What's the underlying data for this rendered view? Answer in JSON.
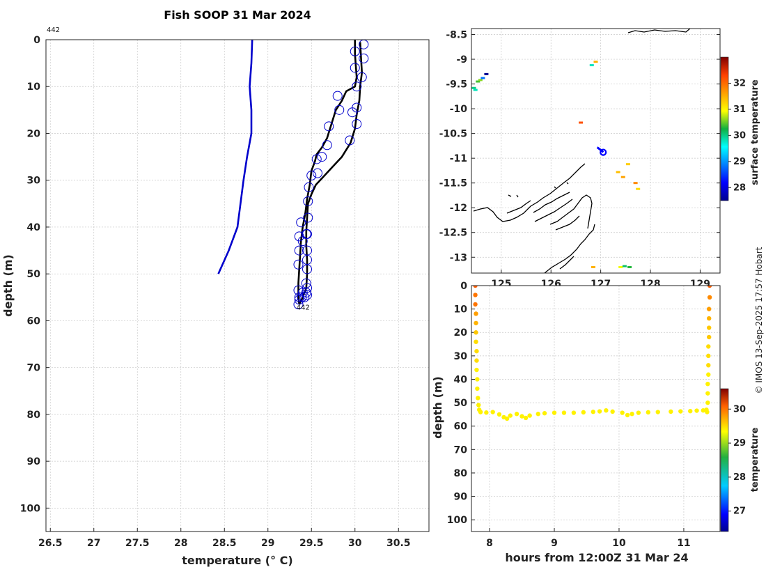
{
  "title": "Fish SOOP 31 Mar 2024",
  "credit": "© IMOS 13-Sep-2025 17:57 Hobart",
  "chart_data": [
    {
      "type": "line",
      "name": "temperature-profile",
      "xlabel": "temperature (° C)",
      "ylabel": "depth (m)",
      "xlim": [
        26.45,
        30.85
      ],
      "ylim": [
        105,
        0
      ],
      "xticks": [
        26.5,
        27,
        27.5,
        28,
        28.5,
        29,
        29.5,
        30,
        30.5
      ],
      "yticks": [
        0,
        10,
        20,
        30,
        40,
        50,
        60,
        70,
        80,
        90,
        100
      ],
      "grid": true,
      "annotations": [
        {
          "text": "442",
          "position": "top-left"
        },
        {
          "text": "442",
          "at": [
            29.36,
            57.2
          ]
        }
      ],
      "series": [
        {
          "name": "climatology",
          "color": "#0000cc",
          "x": [
            28.82,
            28.81,
            28.79,
            28.81,
            28.81,
            28.76,
            28.72,
            28.65,
            28.55,
            28.43
          ],
          "y": [
            0,
            5,
            10,
            15,
            20,
            25,
            30,
            40,
            45,
            50
          ]
        },
        {
          "name": "profile",
          "color": "#000000",
          "x": [
            30.0,
            30.0,
            30.02,
            30.0,
            29.9,
            29.85,
            29.78,
            29.73,
            29.68,
            29.62,
            29.56,
            29.54,
            29.5,
            29.48,
            29.45,
            29.43,
            29.4,
            29.38,
            29.37,
            29.36,
            29.35,
            29.35,
            29.35,
            29.36
          ],
          "y": [
            0,
            3,
            8,
            10,
            11,
            13,
            15,
            18,
            21,
            23,
            24.5,
            26,
            28,
            31,
            34,
            37,
            40,
            43,
            46,
            49,
            52,
            54,
            55,
            56.5
          ]
        },
        {
          "name": "profile-return",
          "color": "#000000",
          "x": [
            29.36,
            29.4,
            29.44,
            29.45,
            29.45,
            29.44,
            29.44,
            29.45,
            29.46,
            29.5,
            29.55,
            29.65,
            29.75,
            29.85,
            29.95,
            30.0,
            30.02,
            30.05,
            30.06,
            30.08,
            30.07,
            30.06
          ],
          "y": [
            56.5,
            55,
            53,
            50,
            47,
            44,
            41,
            38,
            35,
            33,
            31,
            29,
            27,
            25,
            22,
            19,
            16,
            13,
            10,
            7,
            4,
            0.5
          ]
        },
        {
          "name": "profile-markers",
          "color": "#0000cc",
          "x": [
            30.1,
            30.1,
            30.08,
            30.02,
            30.02,
            30.02,
            29.94,
            29.8,
            29.82,
            29.7,
            29.68,
            29.62,
            29.57,
            29.56,
            29.5,
            29.47,
            29.46,
            29.46,
            29.45,
            29.45,
            29.45,
            29.45,
            29.45,
            29.42,
            29.4,
            29.36,
            29.35,
            29.36,
            29.35,
            29.36,
            29.35,
            29.36,
            29.38,
            29.4,
            29.44,
            29.45,
            29.44,
            29.44,
            29.39,
            30.0,
            30.0,
            29.97
          ],
          "y": [
            1,
            4,
            8,
            10,
            14.5,
            18,
            21.5,
            12,
            15,
            18.5,
            22.5,
            25,
            28.5,
            25.5,
            29,
            31.5,
            34.5,
            38,
            41.5,
            45,
            49,
            53,
            54.5,
            55,
            54,
            55.5,
            56.5,
            55,
            53.5,
            45,
            48,
            42,
            39,
            43,
            41.5,
            47,
            52,
            54,
            55,
            2.5,
            6,
            15.5
          ]
        }
      ]
    },
    {
      "type": "scatter",
      "name": "surface-temperature-map",
      "xlabel": "",
      "ylabel": "",
      "xlim": [
        124.4,
        129.4
      ],
      "ylim": [
        -13.32,
        -8.38
      ],
      "xticks": [
        125,
        126,
        127,
        128,
        129
      ],
      "yticks": [
        -8.5,
        -9,
        -9.5,
        -10,
        -10.5,
        -11,
        -11.5,
        -12,
        -12.5,
        -13
      ],
      "grid": true,
      "colorbar": {
        "label": "surface temperature",
        "range": [
          27.5,
          33.0
        ],
        "ticks": [
          28,
          29,
          30,
          31,
          32
        ]
      },
      "points": [
        {
          "lon": 124.45,
          "lat": -9.58,
          "c": 30.0
        },
        {
          "lon": 124.48,
          "lat": -9.62,
          "c": 29.8
        },
        {
          "lon": 124.53,
          "lat": -9.45,
          "c": 30.4
        },
        {
          "lon": 124.58,
          "lat": -9.42,
          "c": 30.6
        },
        {
          "lon": 124.63,
          "lat": -9.38,
          "c": 28.8
        },
        {
          "lon": 124.7,
          "lat": -9.3,
          "c": 27.5
        },
        {
          "lon": 126.9,
          "lat": -9.05,
          "c": 31.5
        },
        {
          "lon": 126.82,
          "lat": -9.12,
          "c": 29.8
        },
        {
          "lon": 126.6,
          "lat": -10.28,
          "c": 32.2
        },
        {
          "lon": 127.35,
          "lat": -11.28,
          "c": 31.4
        },
        {
          "lon": 127.45,
          "lat": -11.38,
          "c": 31.6
        },
        {
          "lon": 127.7,
          "lat": -11.5,
          "c": 31.8
        },
        {
          "lon": 127.55,
          "lat": -11.12,
          "c": 31.3
        },
        {
          "lon": 127.75,
          "lat": -11.62,
          "c": 31.2
        },
        {
          "lon": 126.85,
          "lat": -13.2,
          "c": 31.5
        },
        {
          "lon": 127.4,
          "lat": -13.2,
          "c": 30.9
        },
        {
          "lon": 127.48,
          "lat": -13.18,
          "c": 30.1
        },
        {
          "lon": 127.58,
          "lat": -13.2,
          "c": 30.3
        }
      ],
      "track": {
        "lon": [
          126.93,
          126.97,
          127.02,
          127.05
        ],
        "lat": [
          -10.78,
          -10.81,
          -10.85,
          -10.88
        ],
        "color": "#0000ff"
      }
    },
    {
      "type": "scatter",
      "name": "depth-time-section",
      "xlabel": "hours from 12:00Z 31 Mar 24",
      "ylabel": "depth (m)",
      "xlim": [
        7.72,
        11.56
      ],
      "ylim": [
        105,
        0
      ],
      "xticks": [
        8,
        9,
        10,
        11
      ],
      "yticks": [
        0,
        10,
        20,
        30,
        40,
        50,
        60,
        70,
        80,
        90,
        100
      ],
      "grid": true,
      "colorbar": {
        "label": "temperature",
        "range": [
          26.4,
          30.6
        ],
        "ticks": [
          27,
          28,
          29,
          30
        ]
      },
      "descent": {
        "x": [
          7.78,
          7.78,
          7.78,
          7.79,
          7.79,
          7.79,
          7.79,
          7.8,
          7.8,
          7.8,
          7.81,
          7.81,
          7.82,
          7.83,
          7.84,
          7.86
        ],
        "depth": [
          0,
          4,
          8,
          12,
          16,
          20,
          24,
          28,
          32,
          36,
          40,
          44,
          48,
          51,
          53,
          54
        ],
        "temp": [
          30.1,
          30.0,
          30.0,
          29.8,
          29.7,
          29.6,
          29.5,
          29.5,
          29.5,
          29.4,
          29.4,
          29.4,
          29.4,
          29.4,
          29.4,
          29.4
        ]
      },
      "bottom": {
        "x": [
          7.86,
          7.95,
          8.05,
          8.15,
          8.22,
          8.27,
          8.32,
          8.42,
          8.5,
          8.56,
          8.62,
          8.75,
          8.85,
          9.0,
          9.15,
          9.3,
          9.45,
          9.6,
          9.7,
          9.8,
          9.9,
          10.05,
          10.13,
          10.2,
          10.3,
          10.45,
          10.6,
          10.8,
          10.95,
          11.1,
          11.2,
          11.3,
          11.35
        ],
        "depth": [
          54,
          54.2,
          54.0,
          55.0,
          56.2,
          56.8,
          55.5,
          54.8,
          55.8,
          56.5,
          55.5,
          54.8,
          54.5,
          54.3,
          54.3,
          54.3,
          54.1,
          53.9,
          53.7,
          53.3,
          53.8,
          54.3,
          55.3,
          54.8,
          54.3,
          54.1,
          54.0,
          53.8,
          53.7,
          53.6,
          53.4,
          53.3,
          53.0
        ],
        "temp": 29.4
      },
      "ascent": {
        "x": [
          11.36,
          11.37,
          11.37,
          11.37,
          11.38,
          11.38,
          11.38,
          11.38,
          11.39,
          11.39,
          11.39,
          11.39,
          11.4,
          11.4
        ],
        "depth": [
          54,
          50,
          46,
          42,
          38,
          34,
          30,
          26,
          22,
          18,
          14,
          10,
          5,
          0
        ],
        "temp": [
          29.4,
          29.4,
          29.4,
          29.4,
          29.4,
          29.5,
          29.5,
          29.5,
          29.6,
          29.6,
          29.7,
          29.8,
          29.9,
          30.1
        ]
      }
    }
  ]
}
